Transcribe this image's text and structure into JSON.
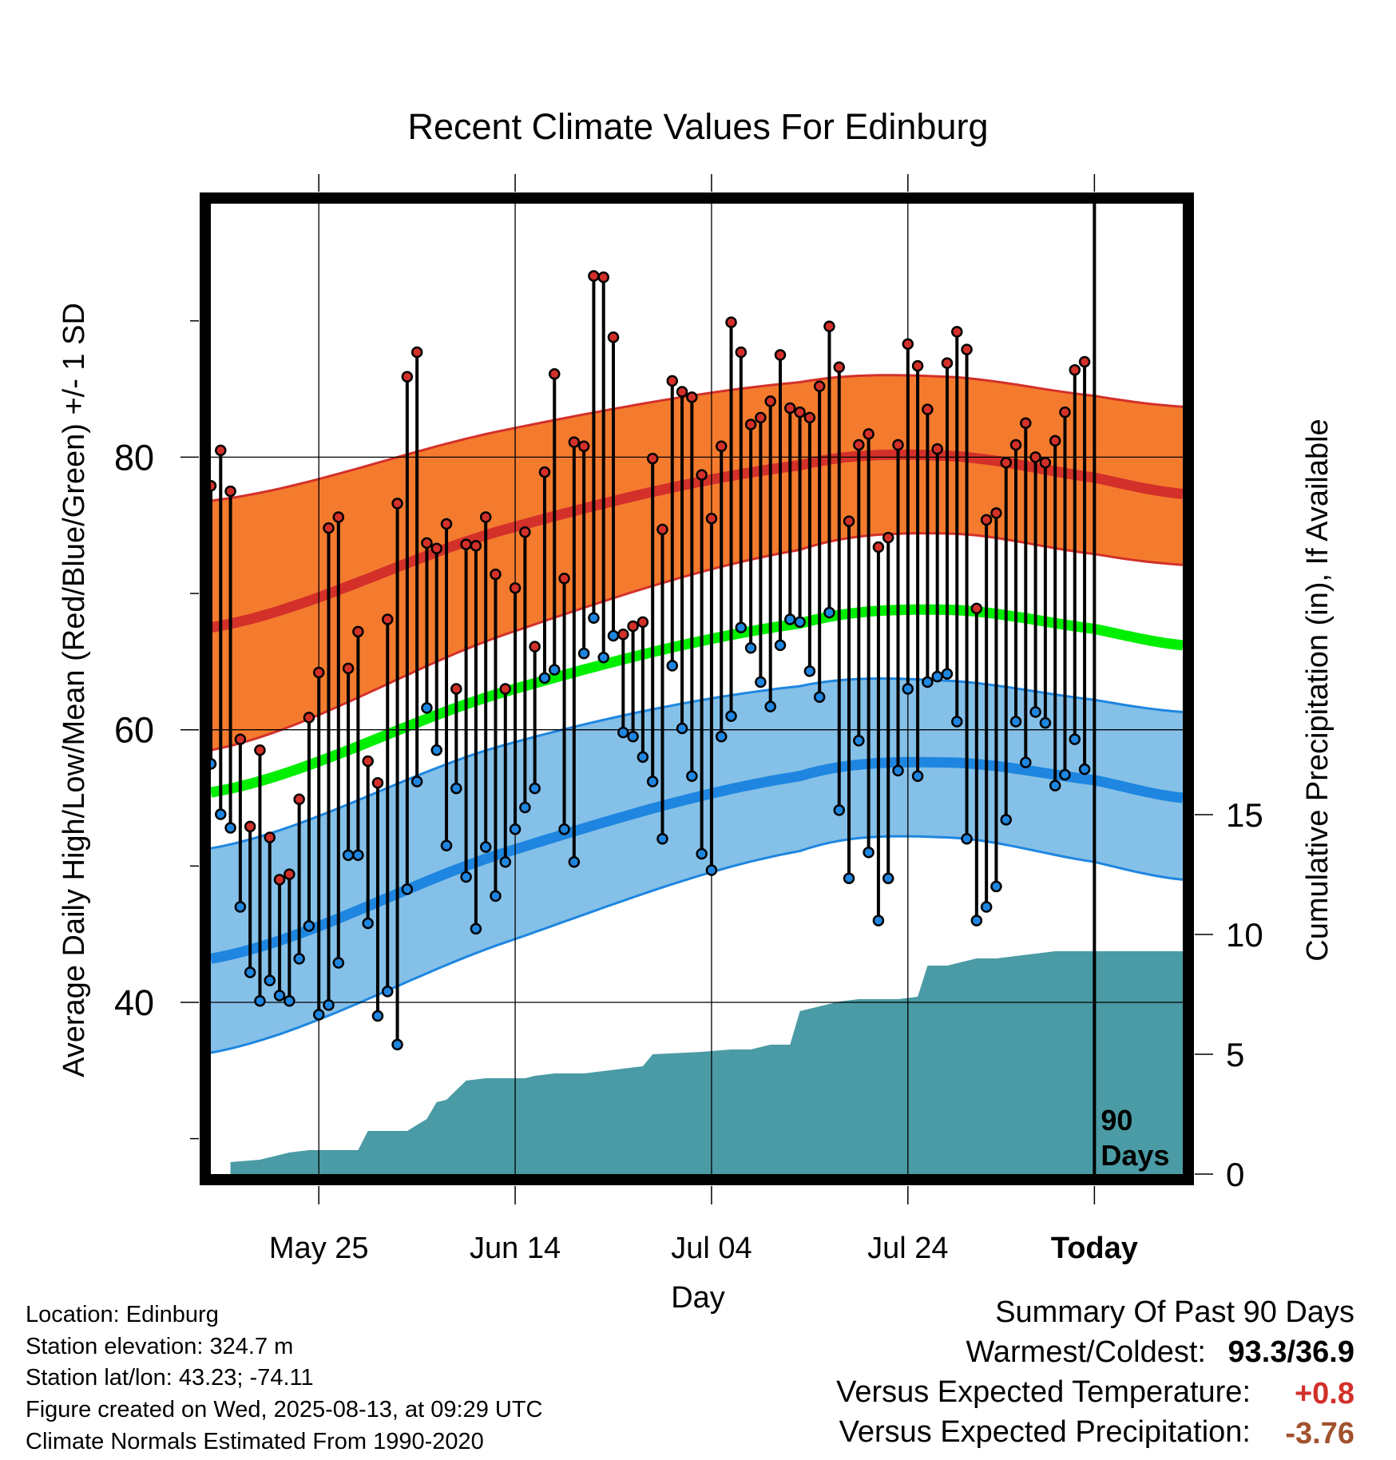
{
  "chart_data": {
    "type": "line",
    "title": "Recent Climate Values For Edinburg",
    "xlabel": "Day",
    "ylabel_left": "Average Daily High/Low/Mean (Red/Blue/Green) +/- 1 SD",
    "ylabel_right": "Cumulative Precipitation (in), If Available",
    "x_tick_labels": [
      "May 25",
      "Jun 14",
      "Jul 04",
      "Jul 24",
      "Today"
    ],
    "x_tick_days": [
      -79,
      -59,
      -39,
      -19,
      0
    ],
    "xlim_days": [
      -90,
      9
    ],
    "y_left_ticks": [
      40,
      60,
      80
    ],
    "y_left_minor_ticks": [
      30,
      50,
      70,
      90
    ],
    "ylim_left": [
      27.4,
      98.6
    ],
    "y_right_ticks": [
      0,
      5,
      10,
      15
    ],
    "ylim_right": [
      0,
      40.5
    ],
    "today_marker_text": [
      "90",
      "Days"
    ],
    "normals": {
      "days": [
        -90,
        -60,
        -30,
        -15,
        0,
        9
      ],
      "high_mean": [
        67.5,
        74.7,
        79.4,
        80.1,
        78.5,
        77.3
      ],
      "high_upper": [
        76.8,
        82.0,
        85.5,
        85.9,
        84.5,
        83.7
      ],
      "high_lower": [
        58.5,
        67.0,
        73.2,
        74.4,
        72.9,
        72.1
      ],
      "avg_mean": [
        55.4,
        62.8,
        67.8,
        68.8,
        67.4,
        66.2
      ],
      "low_mean": [
        43.2,
        51.0,
        56.6,
        57.6,
        56.3,
        55.0
      ],
      "low_upper": [
        51.3,
        58.9,
        63.2,
        63.6,
        62.2,
        61.3
      ],
      "low_lower": [
        36.3,
        44.4,
        51.1,
        52.1,
        50.3,
        49.0
      ]
    },
    "series": [
      {
        "name": "Daily High",
        "x": [
          -90,
          -89,
          -88,
          -87,
          -86,
          -85,
          -84,
          -83,
          -82,
          -81,
          -80,
          -79,
          -78,
          -77,
          -76,
          -75,
          -74,
          -73,
          -72,
          -71,
          -70,
          -69,
          -68,
          -67,
          -66,
          -65,
          -64,
          -63,
          -62,
          -61,
          -60,
          -59,
          -58,
          -57,
          -56,
          -55,
          -54,
          -53,
          -52,
          -51,
          -50,
          -49,
          -48,
          -47,
          -46,
          -45,
          -44,
          -43,
          -42,
          -41,
          -40,
          -39,
          -38,
          -37,
          -36,
          -35,
          -34,
          -33,
          -32,
          -31,
          -30,
          -29,
          -28,
          -27,
          -26,
          -25,
          -24,
          -23,
          -22,
          -21,
          -20,
          -19,
          -18,
          -17,
          -16,
          -15,
          -14,
          -13,
          -12,
          -11,
          -10,
          -9,
          -8,
          -7,
          -6,
          -5,
          -4,
          -3,
          -2,
          -1
        ],
        "values": [
          77.9,
          80.5,
          77.5,
          59.3,
          52.9,
          58.5,
          52.1,
          49.0,
          49.4,
          54.9,
          60.9,
          64.2,
          74.8,
          75.6,
          64.5,
          67.2,
          57.7,
          56.1,
          68.1,
          76.6,
          85.9,
          87.7,
          73.7,
          73.3,
          75.1,
          63.0,
          73.6,
          73.5,
          75.6,
          71.4,
          63.0,
          70.4,
          74.5,
          66.1,
          78.9,
          86.1,
          71.1,
          81.1,
          80.8,
          93.3,
          93.2,
          88.8,
          67.0,
          67.6,
          67.9,
          79.9,
          74.7,
          85.6,
          84.8,
          84.4,
          78.7,
          75.5,
          80.8,
          89.9,
          87.7,
          82.4,
          82.9,
          84.1,
          87.5,
          83.6,
          83.3,
          82.9,
          85.2,
          89.6,
          86.6,
          75.3,
          80.9,
          81.7,
          73.4,
          74.1,
          80.9,
          88.3,
          86.7,
          83.5,
          80.6,
          86.9,
          89.2,
          87.9,
          68.9,
          75.4,
          75.9,
          79.6,
          80.9,
          82.5,
          80.0,
          79.6,
          81.2,
          83.3,
          86.4,
          87.0
        ],
        "color": "#d3302a"
      },
      {
        "name": "Daily Low",
        "x": [
          -90,
          -89,
          -88,
          -87,
          -86,
          -85,
          -84,
          -83,
          -82,
          -81,
          -80,
          -79,
          -78,
          -77,
          -76,
          -75,
          -74,
          -73,
          -72,
          -71,
          -70,
          -69,
          -68,
          -67,
          -66,
          -65,
          -64,
          -63,
          -62,
          -61,
          -60,
          -59,
          -58,
          -57,
          -56,
          -55,
          -54,
          -53,
          -52,
          -51,
          -50,
          -49,
          -48,
          -47,
          -46,
          -45,
          -44,
          -43,
          -42,
          -41,
          -40,
          -39,
          -38,
          -37,
          -36,
          -35,
          -34,
          -33,
          -32,
          -31,
          -30,
          -29,
          -28,
          -27,
          -26,
          -25,
          -24,
          -23,
          -22,
          -21,
          -20,
          -19,
          -18,
          -17,
          -16,
          -15,
          -14,
          -13,
          -12,
          -11,
          -10,
          -9,
          -8,
          -7,
          -6,
          -5,
          -4,
          -3,
          -2,
          -1
        ],
        "values": [
          57.5,
          53.8,
          52.8,
          47.0,
          42.2,
          40.1,
          41.6,
          40.5,
          40.1,
          43.2,
          45.6,
          39.1,
          39.8,
          42.9,
          50.8,
          50.8,
          45.8,
          39.0,
          40.8,
          36.9,
          48.3,
          56.2,
          61.6,
          58.5,
          51.5,
          55.7,
          49.2,
          45.4,
          51.4,
          47.8,
          50.3,
          52.7,
          54.3,
          55.7,
          63.8,
          64.4,
          52.7,
          50.3,
          65.6,
          68.2,
          65.3,
          66.9,
          59.8,
          59.5,
          58.0,
          56.2,
          52.0,
          64.7,
          60.1,
          56.6,
          50.9,
          49.7,
          59.5,
          61.0,
          67.5,
          66.0,
          63.5,
          61.7,
          66.2,
          68.1,
          67.9,
          64.3,
          62.4,
          68.6,
          54.1,
          49.1,
          59.2,
          51.0,
          46.0,
          49.1,
          57.0,
          63.0,
          56.6,
          63.5,
          63.9,
          64.1,
          60.6,
          52.0,
          46.0,
          47.0,
          48.5,
          53.4,
          60.6,
          57.6,
          61.3,
          60.5,
          55.9,
          56.7,
          59.3,
          57.1
        ],
        "color": "#1e86e0"
      },
      {
        "name": "Cumulative Precipitation",
        "x": [
          -88,
          -85,
          -82,
          -80,
          -78,
          -75,
          -74,
          -70,
          -68,
          -67,
          -66,
          -64,
          -62,
          -58,
          -57,
          -55,
          -52,
          -50,
          -46,
          -45,
          -40,
          -37,
          -35,
          -33,
          -31,
          -30,
          -28,
          -26,
          -24,
          -20,
          -18,
          -17,
          -15,
          -12,
          -10,
          -8,
          -6,
          -4,
          -2,
          -1,
          0,
          9
        ],
        "values": [
          0.5,
          0.6,
          0.9,
          1.0,
          1.0,
          1.0,
          1.8,
          1.8,
          2.3,
          3.0,
          3.1,
          3.9,
          4.0,
          4.0,
          4.1,
          4.2,
          4.2,
          4.3,
          4.5,
          5.0,
          5.1,
          5.2,
          5.2,
          5.4,
          5.4,
          6.8,
          7.0,
          7.2,
          7.3,
          7.3,
          7.4,
          8.7,
          8.7,
          9.0,
          9.0,
          9.1,
          9.2,
          9.3,
          9.3,
          9.3,
          9.3,
          9.3
        ],
        "color": "#4a9ba5"
      }
    ],
    "legend": "none",
    "grid": true
  },
  "info": {
    "location": "Location: Edinburg",
    "elevation": "Station elevation: 324.7 m",
    "latlon": "Station lat/lon: 43.23; -74.11",
    "created": "Figure created on Wed, 2025-08-13, at 09:29 UTC",
    "normals": "Climate Normals Estimated From 1990-2020"
  },
  "summary": {
    "heading": "Summary Of Past 90 Days",
    "warm_label": "Warmest/Coldest:",
    "warm_value": "93.3/36.9",
    "temp_label": "Versus Expected Temperature:",
    "temp_value": "+0.8",
    "temp_color": "#d3302a",
    "precip_label": "Versus Expected Precipitation:",
    "precip_value": "-3.76",
    "precip_color": "#a0522d"
  },
  "colors": {
    "high_band": "#f47b2e",
    "high_line": "#d3302a",
    "mean_line": "#00ee00",
    "low_band": "#85c0e8",
    "low_line": "#1e86e0",
    "precip": "#4a9ba5"
  }
}
